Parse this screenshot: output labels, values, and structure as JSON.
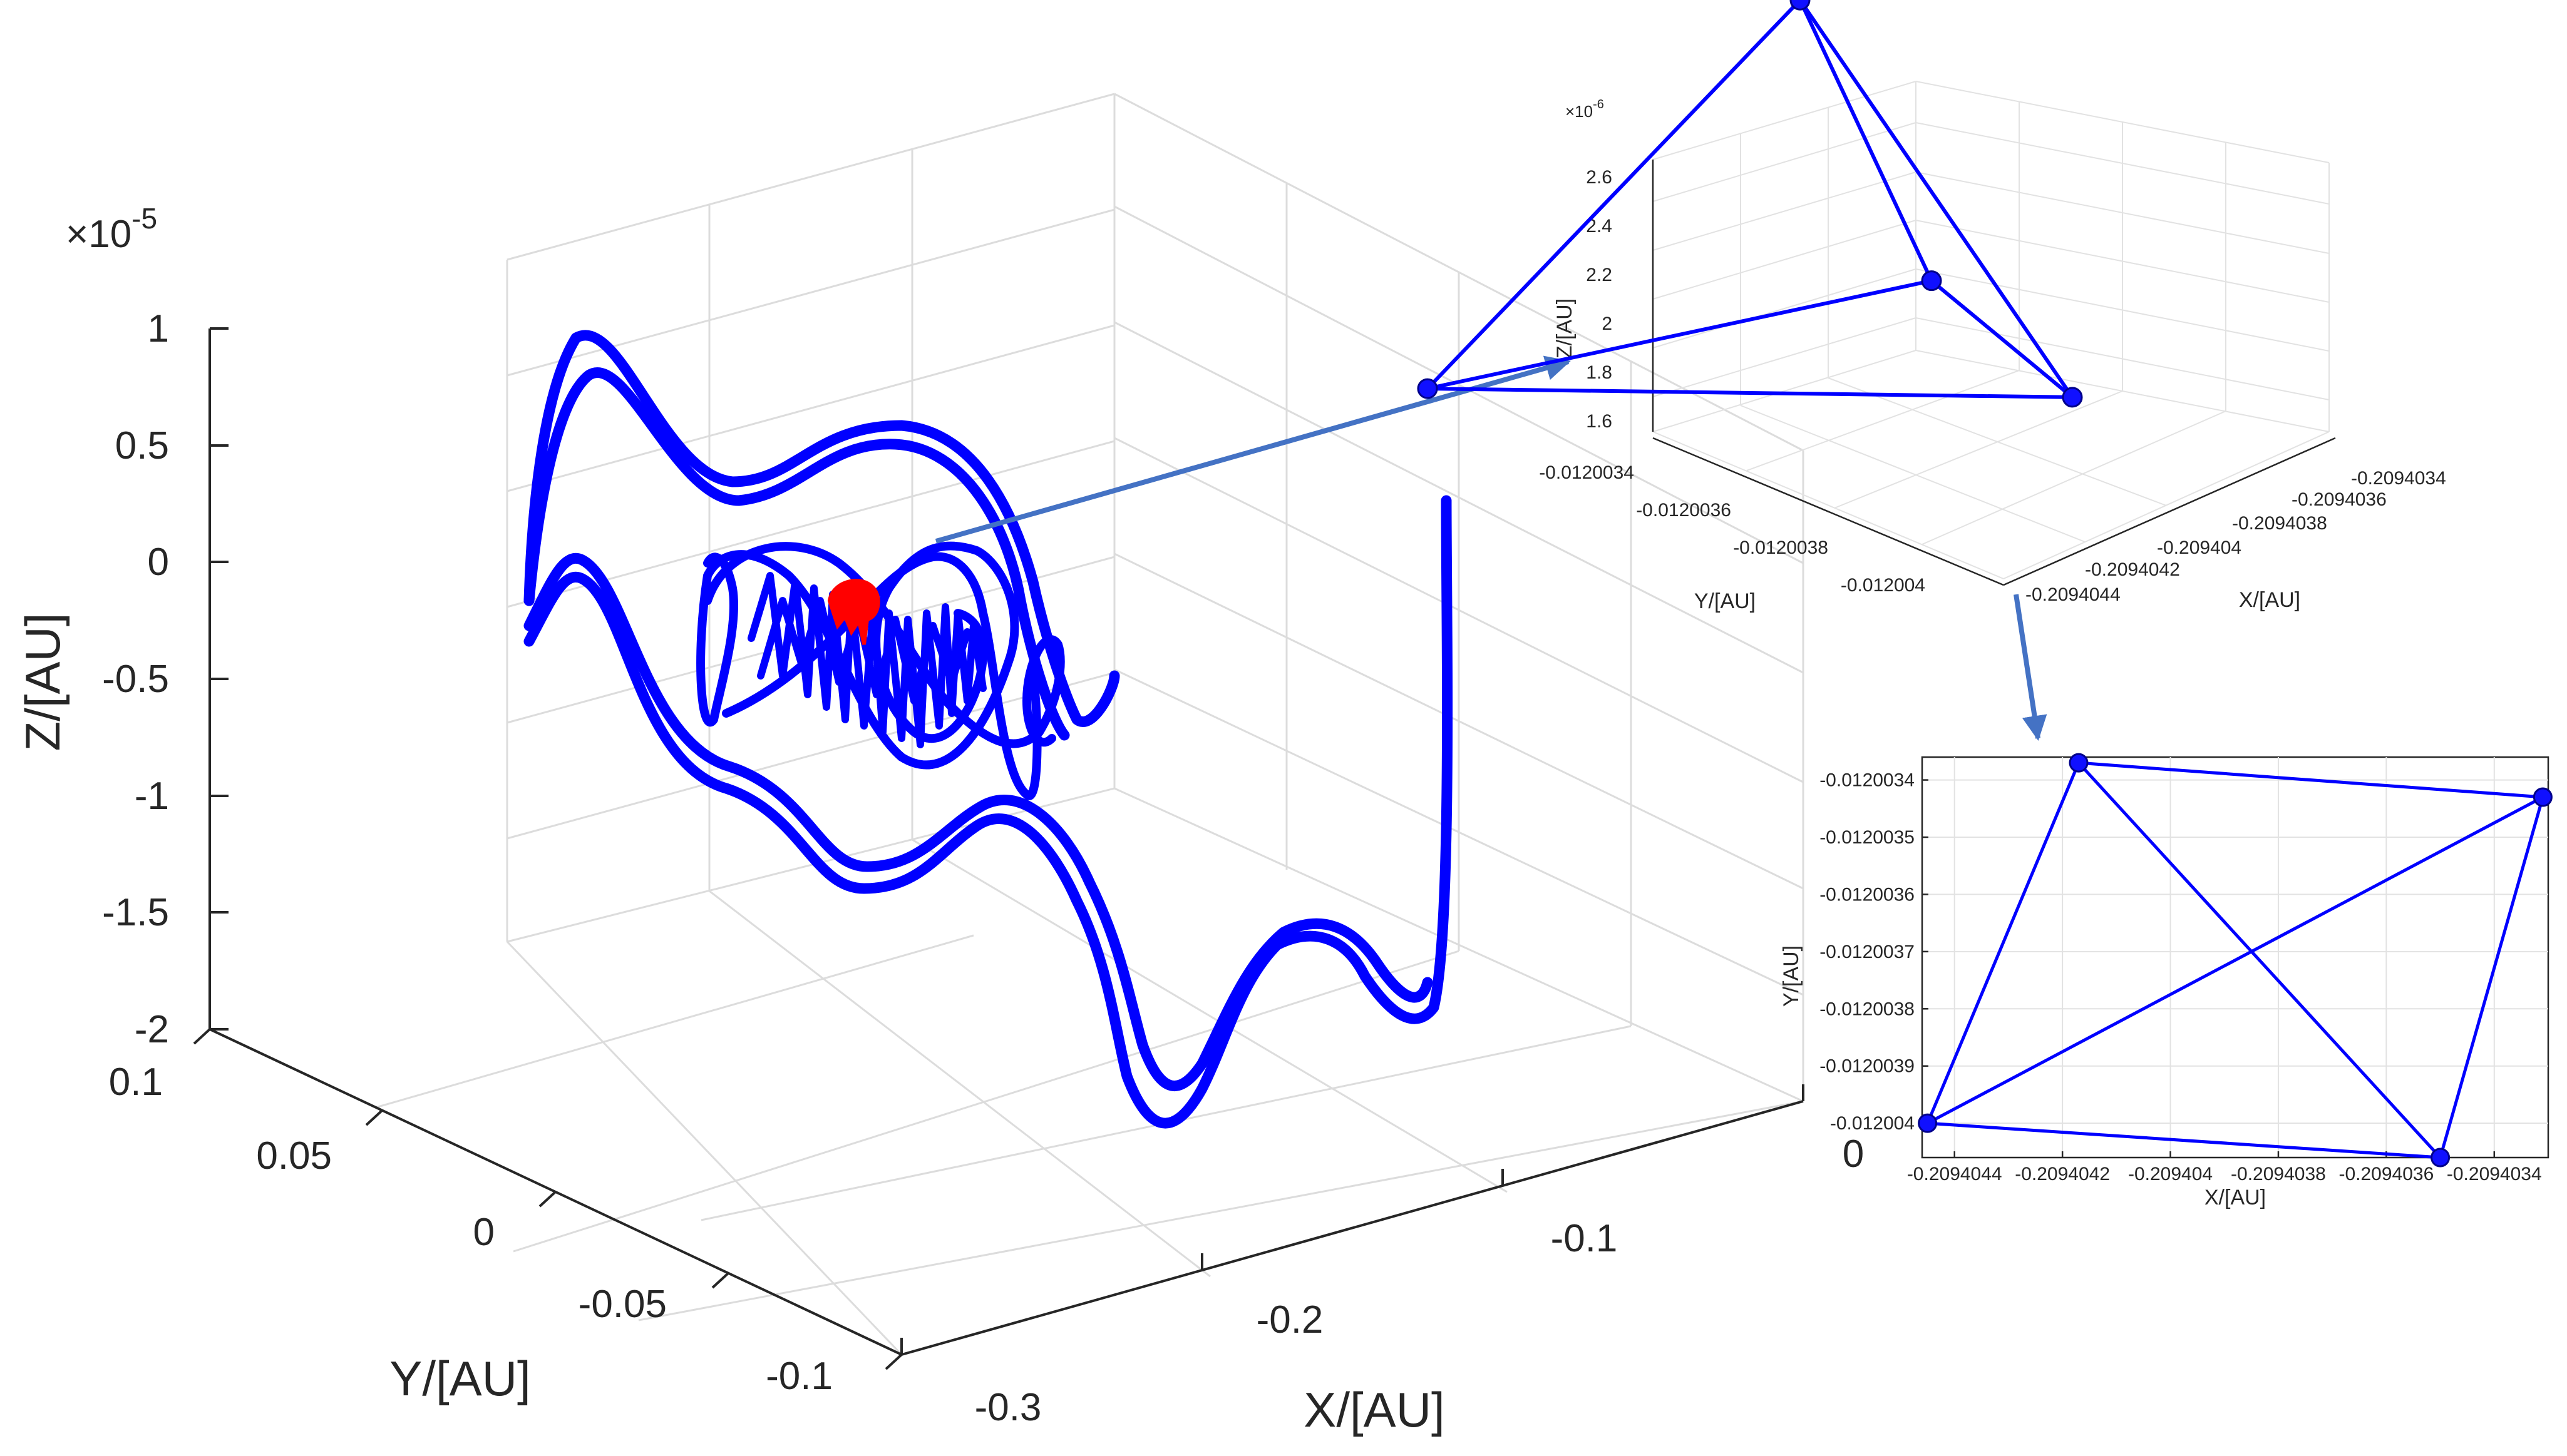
{
  "colors": {
    "trajectory": "#0000ff",
    "marker": "#1010ff",
    "marker_outline": "#00008b",
    "center_cluster": "#ff0000",
    "arrow": "#4472c4"
  },
  "chart_data": [
    {
      "type": "line",
      "view": "3d",
      "title": "",
      "xlabel": "X/[AU]",
      "ylabel": "Y/[AU]",
      "zlabel": "Z/[AU]",
      "z_exponent_base": "×10",
      "z_exponent_power": "-5",
      "xticks": [
        "-0.3",
        "-0.2",
        "-0.1",
        "0"
      ],
      "yticks": [
        "0.1",
        "0.05",
        "0",
        "-0.05",
        "-0.1"
      ],
      "zticks": [
        "1",
        "0.5",
        "0",
        "-0.5",
        "-1",
        "-1.5",
        "-2"
      ],
      "xlim": [
        -0.3,
        0
      ],
      "ylim": [
        -0.1,
        0.1
      ],
      "zlim": [
        -2e-05,
        1e-05
      ],
      "grid": true,
      "series": [
        {
          "color": "#0000ff",
          "description": "wide outer trajectory band"
        },
        {
          "color": "#0000ff",
          "description": "oscillating inner trajectory near center"
        },
        {
          "color": "#ff0000",
          "description": "central cluster"
        }
      ]
    },
    {
      "type": "line",
      "view": "3d",
      "title": "",
      "xlabel": "X/[AU]",
      "ylabel": "Y/[AU]",
      "zlabel": "Z/[AU]",
      "z_exponent_base": "×10",
      "z_exponent_power": "-6",
      "xticks": [
        "-0.2094034",
        "-0.2094036",
        "-0.2094038",
        "-0.209404",
        "-0.2094042",
        "-0.2094044"
      ],
      "yticks": [
        "-0.0120034",
        "-0.0120036",
        "-0.0120038",
        "-0.012004"
      ],
      "zticks": [
        "2.6",
        "2.4",
        "2.2",
        "2",
        "1.8",
        "1.6"
      ],
      "grid": true,
      "points": [
        {
          "x": -0.2094042,
          "y": -0.0120034,
          "z": 1.64e-06
        },
        {
          "x": -0.2094034,
          "y": -0.012004,
          "z": 1.64e-06
        },
        {
          "x": -0.2094036,
          "y": -0.0120034,
          "z": 2.8e-06
        },
        {
          "x": -0.2094044,
          "y": -0.012004,
          "z": 2e-06
        }
      ],
      "edges": [
        [
          0,
          1
        ],
        [
          0,
          2
        ],
        [
          0,
          3
        ],
        [
          1,
          2
        ],
        [
          1,
          3
        ],
        [
          2,
          3
        ]
      ]
    },
    {
      "type": "line",
      "view": "2d",
      "title": "",
      "xlabel": "X/[AU]",
      "ylabel": "Y/[AU]",
      "xticks": [
        "-0.2094044",
        "-0.2094042",
        "-0.209404",
        "-0.2094038",
        "-0.2094036",
        "-0.2094034"
      ],
      "yticks": [
        "-0.0120034",
        "-0.0120035",
        "-0.0120036",
        "-0.0120037",
        "-0.0120038",
        "-0.0120039",
        "-0.012004"
      ],
      "xlim": [
        -0.20940446,
        -0.2094033
      ],
      "ylim": [
        -0.01200406,
        -0.01200336
      ],
      "grid": true,
      "points": [
        {
          "x": -0.20940445,
          "y": -0.012004
        },
        {
          "x": -0.20940417,
          "y": -0.01200337
        },
        {
          "x": -0.20940331,
          "y": -0.01200343
        },
        {
          "x": -0.2094035,
          "y": -0.01200406
        }
      ],
      "edges": [
        [
          0,
          1
        ],
        [
          0,
          2
        ],
        [
          0,
          3
        ],
        [
          1,
          2
        ],
        [
          1,
          3
        ],
        [
          2,
          3
        ]
      ]
    }
  ]
}
